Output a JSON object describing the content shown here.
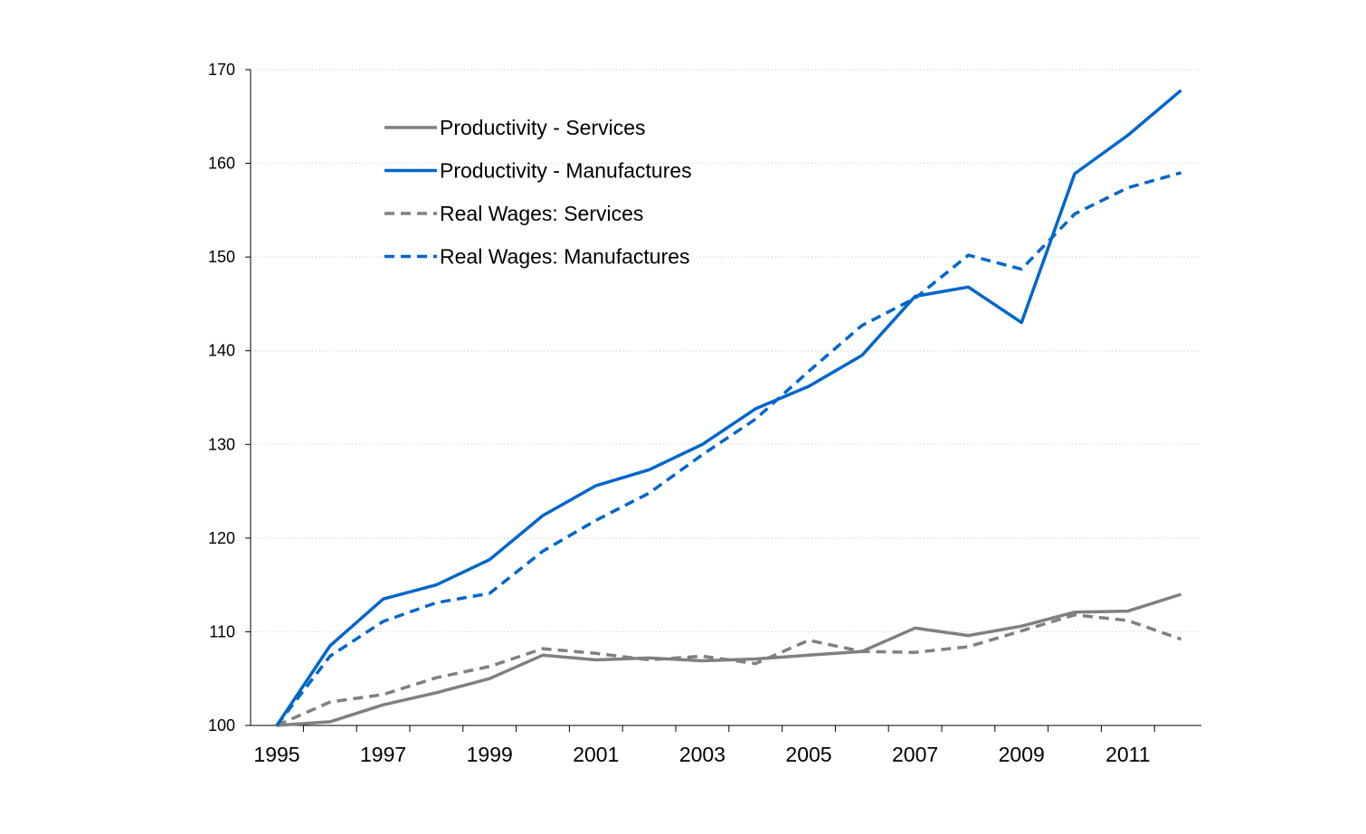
{
  "chart_data": {
    "type": "line",
    "title": "",
    "xlabel": "",
    "ylabel": "",
    "x": [
      1995,
      1996,
      1997,
      1998,
      1999,
      2000,
      2001,
      2002,
      2003,
      2004,
      2005,
      2006,
      2007,
      2008,
      2009,
      2010,
      2011,
      2012
    ],
    "xlim": [
      1995,
      2012
    ],
    "ylim": [
      100,
      170
    ],
    "yticks": [
      "100",
      "110",
      "120",
      "130",
      "140",
      "150",
      "160",
      "170"
    ],
    "xtick_labels": [
      "1995",
      "1997",
      "1999",
      "2001",
      "2003",
      "2005",
      "2007",
      "2009",
      "2011"
    ],
    "grid": "horizontal dotted",
    "legend_position": "top-left",
    "series": [
      {
        "name": "Productivity - Services",
        "color": "#808080",
        "dash": "solid",
        "values": [
          100.0,
          100.4,
          102.2,
          103.5,
          105.0,
          107.5,
          107.0,
          107.2,
          106.9,
          107.1,
          107.5,
          107.9,
          110.4,
          109.6,
          110.6,
          112.1,
          112.2,
          114.0
        ]
      },
      {
        "name": "Productivity - Manufactures",
        "color": "#0066cc",
        "dash": "solid",
        "values": [
          100.0,
          108.5,
          113.5,
          115.0,
          117.7,
          122.4,
          125.6,
          127.3,
          130.0,
          133.8,
          136.2,
          139.5,
          145.8,
          146.8,
          143.0,
          158.9,
          163.0,
          167.8
        ]
      },
      {
        "name": "Real Wages: Services",
        "color": "#808080",
        "dash": "dashed",
        "values": [
          100.0,
          102.5,
          103.3,
          105.1,
          106.3,
          108.2,
          107.7,
          107.0,
          107.4,
          106.6,
          109.1,
          107.9,
          107.8,
          108.4,
          110.1,
          111.8,
          111.2,
          109.2
        ]
      },
      {
        "name": "Real Wages: Manufactures",
        "color": "#0066cc",
        "dash": "dashed",
        "values": [
          100.0,
          107.4,
          111.1,
          113.1,
          114.1,
          118.6,
          121.9,
          124.8,
          128.9,
          132.7,
          137.8,
          142.7,
          145.6,
          150.2,
          148.7,
          154.6,
          157.4,
          159.0
        ]
      }
    ]
  }
}
